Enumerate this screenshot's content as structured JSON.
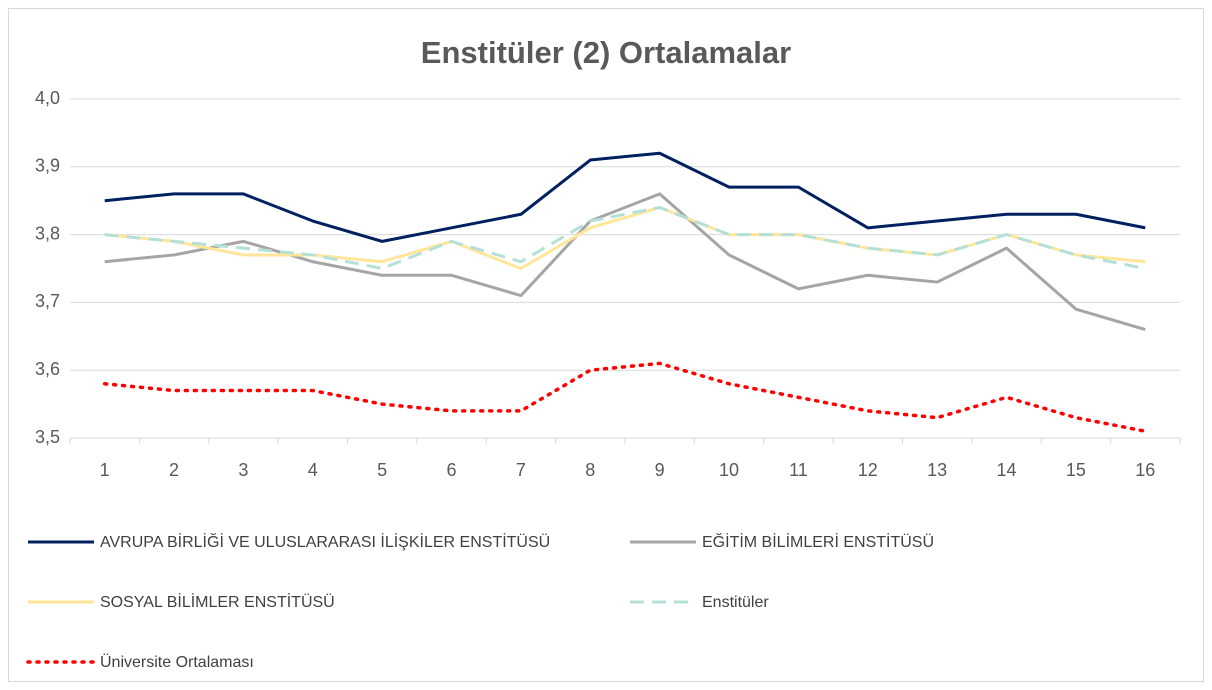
{
  "chart_data": {
    "type": "line",
    "title": "Enstitüler (2) Ortalamalar",
    "categories": [
      "1",
      "2",
      "3",
      "4",
      "5",
      "6",
      "7",
      "8",
      "9",
      "10",
      "11",
      "12",
      "13",
      "14",
      "15",
      "16"
    ],
    "ylim": [
      3.5,
      4.0
    ],
    "yticks": [
      {
        "value": 3.5,
        "label": "3,5"
      },
      {
        "value": 3.6,
        "label": "3,6"
      },
      {
        "value": 3.7,
        "label": "3,7"
      },
      {
        "value": 3.8,
        "label": "3,8"
      },
      {
        "value": 3.9,
        "label": "3,9"
      },
      {
        "value": 4.0,
        "label": "4,0"
      }
    ],
    "grid": true,
    "legend": "bottom",
    "series": [
      {
        "name": "AVRUPA BİRLİĞİ VE ULUSLARARASI İLİŞKİLER ENSTİTÜSÜ",
        "color": "#002060",
        "dash": "solid",
        "values": [
          3.85,
          3.86,
          3.86,
          3.82,
          3.79,
          3.81,
          3.83,
          3.91,
          3.92,
          3.87,
          3.87,
          3.81,
          3.82,
          3.83,
          3.83,
          3.81
        ]
      },
      {
        "name": "EĞİTİM BİLİMLERİ ENSTİTÜSÜ",
        "color": "#a5a5a5",
        "dash": "solid",
        "values": [
          3.76,
          3.77,
          3.79,
          3.76,
          3.74,
          3.74,
          3.71,
          3.82,
          3.86,
          3.77,
          3.72,
          3.74,
          3.73,
          3.78,
          3.69,
          3.66
        ]
      },
      {
        "name": "SOSYAL BİLİMLER ENSTİTÜSÜ",
        "color": "#ffe699",
        "dash": "solid",
        "values": [
          3.8,
          3.79,
          3.77,
          3.77,
          3.76,
          3.79,
          3.75,
          3.81,
          3.84,
          3.8,
          3.8,
          3.78,
          3.77,
          3.8,
          3.77,
          3.76
        ]
      },
      {
        "name": "Enstitüler",
        "color": "#b4e0d8",
        "dash": "dashed",
        "values": [
          3.8,
          3.79,
          3.78,
          3.77,
          3.75,
          3.79,
          3.76,
          3.82,
          3.84,
          3.8,
          3.8,
          3.78,
          3.77,
          3.8,
          3.77,
          3.75
        ]
      },
      {
        "name": "Üniversite Ortalaması",
        "color": "#ff0000",
        "dash": "dotted",
        "values": [
          3.58,
          3.57,
          3.57,
          3.57,
          3.55,
          3.54,
          3.54,
          3.6,
          3.61,
          3.58,
          3.56,
          3.54,
          3.53,
          3.56,
          3.53,
          3.51
        ]
      }
    ]
  }
}
